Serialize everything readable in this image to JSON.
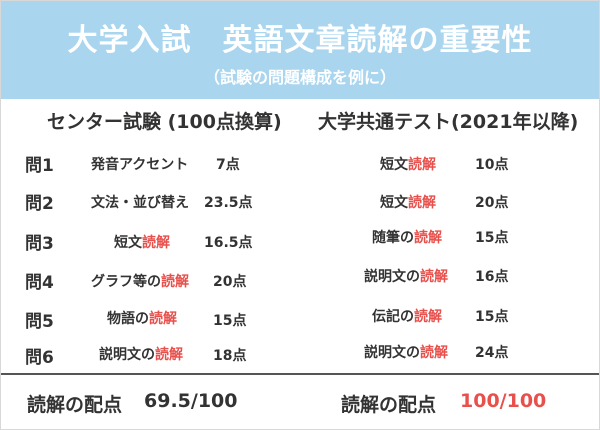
{
  "header": {
    "title": "大学入試　英語文章読解の重要性",
    "subtitle": "（試験の問題構成を例に）"
  },
  "columns": {
    "left": "センター試験 (100点換算)",
    "right": "大学共通テスト(2021年以降)"
  },
  "rows": [
    {
      "q": "問1",
      "left_pre": "発音アクセント",
      "left_hl": "",
      "left_pts": "7点",
      "right_pre": "短文",
      "right_hl": "読解",
      "right_pts": "10点"
    },
    {
      "q": "問2",
      "left_pre": "文法・並び替え",
      "left_hl": "",
      "left_pts": "23.5点",
      "right_pre": "短文",
      "right_hl": "読解",
      "right_pts": "20点"
    },
    {
      "q": "問3",
      "left_pre": "短文",
      "left_hl": "読解",
      "left_pts": "16.5点",
      "right_pre": "随筆の",
      "right_hl": "読解",
      "right_pts": "15点"
    },
    {
      "q": "問4",
      "left_pre": "グラフ等の",
      "left_hl": "読解",
      "left_pts": "20点",
      "right_pre": "説明文の",
      "right_hl": "読解",
      "right_pts": "16点"
    },
    {
      "q": "問5",
      "left_pre": "物語の",
      "left_hl": "読解",
      "left_pts": "15点",
      "right_pre": "伝記の",
      "right_hl": "読解",
      "right_pts": "15点"
    },
    {
      "q": "問6",
      "left_pre": "説明文の",
      "left_hl": "読解",
      "left_pts": "18点",
      "right_pre": "説明文の",
      "right_hl": "読解",
      "right_pts": "24点"
    }
  ],
  "footer": {
    "left_label": "読解の配点",
    "left_score": "69.5/100",
    "right_label": "読解の配点",
    "right_score": "100/100"
  },
  "colors": {
    "header_bg": "#a9d5ee",
    "highlight": "#e8504c",
    "text": "#333333"
  }
}
